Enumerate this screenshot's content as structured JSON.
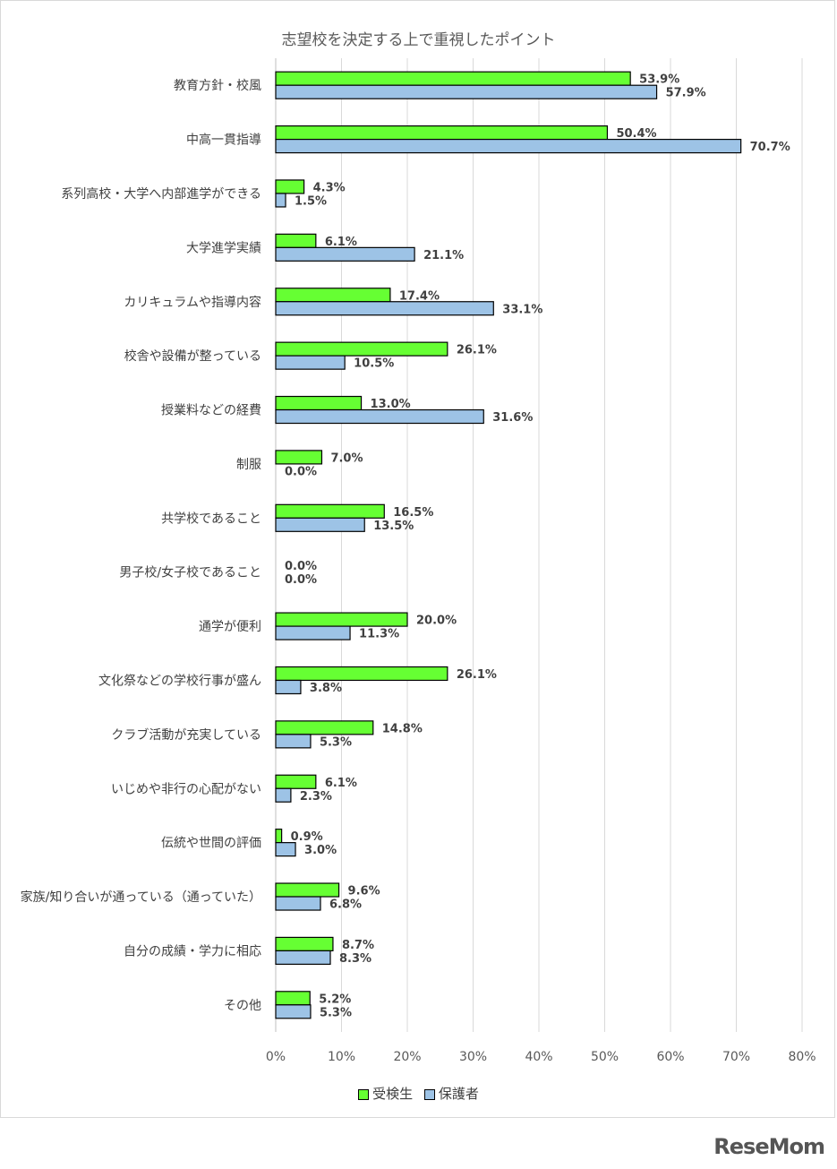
{
  "chart_data": {
    "type": "bar",
    "orientation": "horizontal",
    "title": "志望校を決定する上で重視したポイント",
    "categories": [
      "教育方針・校風",
      "中高一貫指導",
      "系列高校・大学へ内部進学ができる",
      "大学進学実績",
      "カリキュラムや指導内容",
      "校舎や設備が整っている",
      "授業料などの経費",
      "制服",
      "共学校であること",
      "男子校/女子校であること",
      "通学が便利",
      "文化祭などの学校行事が盛ん",
      "クラブ活動が充実している",
      "いじめや非行の心配がない",
      "伝統や世間の評価",
      "家族/知り合いが通っている（通っていた）",
      "自分の成績・学力に相応",
      "その他"
    ],
    "series": [
      {
        "name": "受検生",
        "color": "#66ff33",
        "values": [
          53.9,
          50.4,
          4.3,
          6.1,
          17.4,
          26.1,
          13.0,
          7.0,
          16.5,
          0.0,
          20.0,
          26.1,
          14.8,
          6.1,
          0.9,
          9.6,
          8.7,
          5.2
        ]
      },
      {
        "name": "保護者",
        "color": "#9dc3e6",
        "values": [
          57.9,
          70.7,
          1.5,
          21.1,
          33.1,
          10.5,
          31.6,
          0.0,
          13.5,
          0.0,
          11.3,
          3.8,
          5.3,
          2.3,
          3.0,
          6.8,
          8.3,
          5.3
        ]
      }
    ],
    "xlim": [
      0,
      80
    ],
    "xticks": [
      "0%",
      "10%",
      "20%",
      "30%",
      "40%",
      "50%",
      "60%",
      "70%",
      "80%"
    ],
    "value_suffix": "%",
    "grid": true,
    "legend_position": "bottom"
  },
  "brand": "ReseMom"
}
